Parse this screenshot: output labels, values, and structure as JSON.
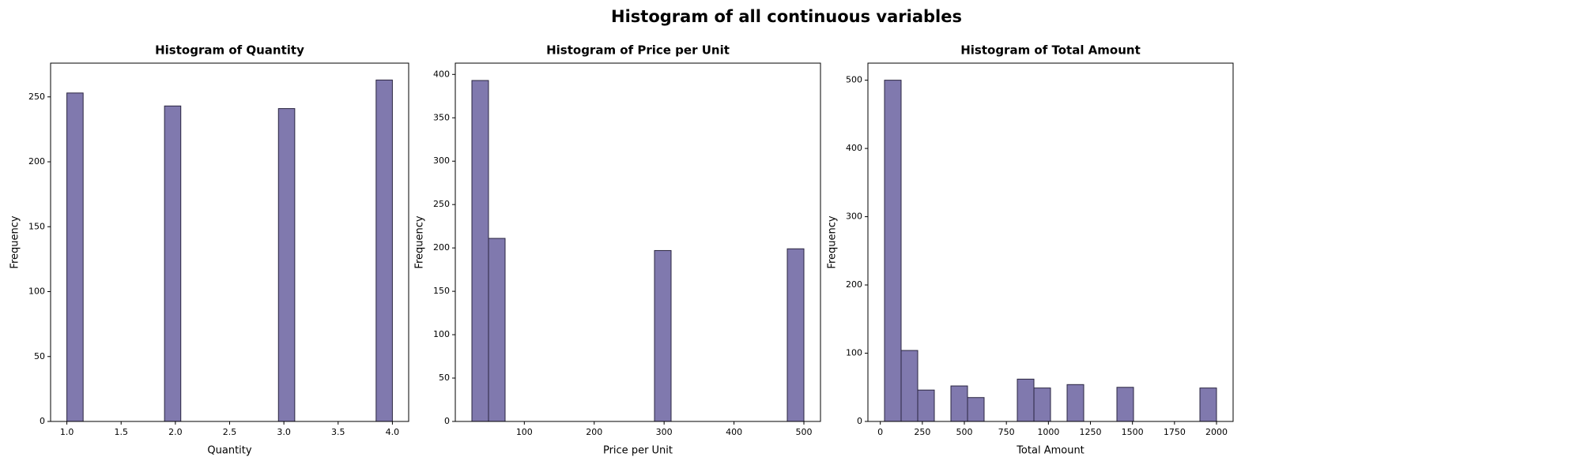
{
  "title": "Histogram of all continuous variables",
  "chart_data": [
    {
      "type": "histogram",
      "title": "Histogram of Quantity",
      "xlabel": "Quantity",
      "ylabel": "Frequency",
      "color": "#7c75ab",
      "bins": [
        1.0,
        1.15,
        1.3,
        1.45,
        1.6,
        1.75,
        1.9,
        2.05,
        2.2,
        2.35,
        2.5,
        2.65,
        2.8,
        2.95,
        3.1,
        3.25,
        3.4,
        3.55,
        3.7,
        3.85,
        4.0
      ],
      "values": [
        253,
        0,
        0,
        0,
        0,
        0,
        243,
        0,
        0,
        0,
        0,
        0,
        0,
        241,
        0,
        0,
        0,
        0,
        0,
        263
      ],
      "xlim": [
        0.85,
        4.15
      ],
      "xticks": [
        {
          "value": 1,
          "label": "1.0"
        },
        1.5,
        {
          "value": 2,
          "label": "2.0"
        },
        2.5,
        {
          "value": 3,
          "label": "3.0"
        },
        3.5,
        {
          "value": 4,
          "label": "4.0"
        }
      ],
      "ylim": [
        0,
        276
      ],
      "yticks": [
        0,
        50,
        100,
        150,
        200,
        250
      ]
    },
    {
      "type": "histogram",
      "title": "Histogram of Price per Unit",
      "xlabel": "Price per Unit",
      "ylabel": "Frequency",
      "color": "#7c75ab",
      "bins": [
        25,
        48.75,
        72.5,
        96.25,
        120,
        143.75,
        167.5,
        191.25,
        215,
        238.75,
        262.5,
        286.25,
        310,
        333.75,
        357.5,
        381.25,
        405,
        428.75,
        452.5,
        476.25,
        500
      ],
      "values": [
        393,
        211,
        0,
        0,
        0,
        0,
        0,
        0,
        0,
        0,
        0,
        197,
        0,
        0,
        0,
        0,
        0,
        0,
        0,
        199
      ],
      "xlim": [
        1.25,
        523.75
      ],
      "xticks": [
        100,
        200,
        300,
        400,
        500
      ],
      "ylim": [
        0,
        413
      ],
      "yticks": [
        0,
        50,
        100,
        150,
        200,
        250,
        300,
        350,
        400
      ]
    },
    {
      "type": "histogram",
      "title": "Histogram of Total Amount",
      "xlabel": "Total Amount",
      "ylabel": "Frequency",
      "color": "#7c75ab",
      "bins": [
        25,
        123.75,
        222.5,
        321.25,
        420,
        518.75,
        617.5,
        716.25,
        815,
        913.75,
        1012.5,
        1111.25,
        1210,
        1308.75,
        1407.5,
        1506.25,
        1605,
        1703.75,
        1802.5,
        1901.25,
        2000
      ],
      "values": [
        500,
        104,
        46,
        0,
        52,
        35,
        0,
        0,
        62,
        49,
        0,
        54,
        0,
        0,
        50,
        0,
        0,
        0,
        0,
        49
      ],
      "xlim": [
        -73.75,
        2098.75
      ],
      "xticks": [
        0,
        250,
        500,
        750,
        1000,
        1250,
        1500,
        1750,
        2000
      ],
      "ylim": [
        0,
        525
      ],
      "yticks": [
        0,
        100,
        200,
        300,
        400,
        500
      ]
    }
  ]
}
